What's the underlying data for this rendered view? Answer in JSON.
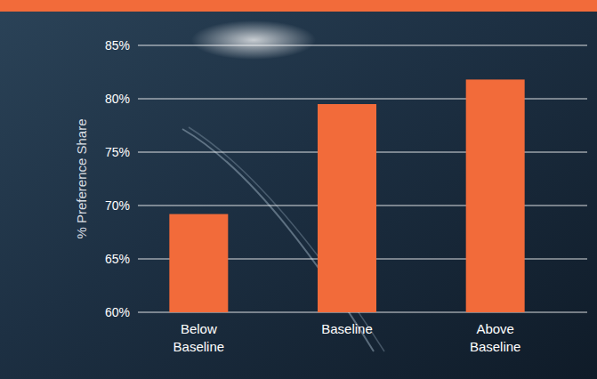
{
  "chart_data": {
    "type": "bar",
    "y_label": "% Preference Share",
    "categories": [
      "Below Baseline",
      "Baseline",
      "Above Baseline"
    ],
    "values": [
      69.2,
      79.5,
      81.8
    ],
    "color": "#f26b3a",
    "ylim": [
      60,
      85
    ],
    "yticks": [
      {
        "value": 60,
        "label": "60%"
      },
      {
        "value": 65,
        "label": "65%"
      },
      {
        "value": 70,
        "label": "70%"
      },
      {
        "value": 75,
        "label": "75%"
      },
      {
        "value": 80,
        "label": "80%"
      },
      {
        "value": 85,
        "label": "85%"
      }
    ],
    "grid": true
  }
}
